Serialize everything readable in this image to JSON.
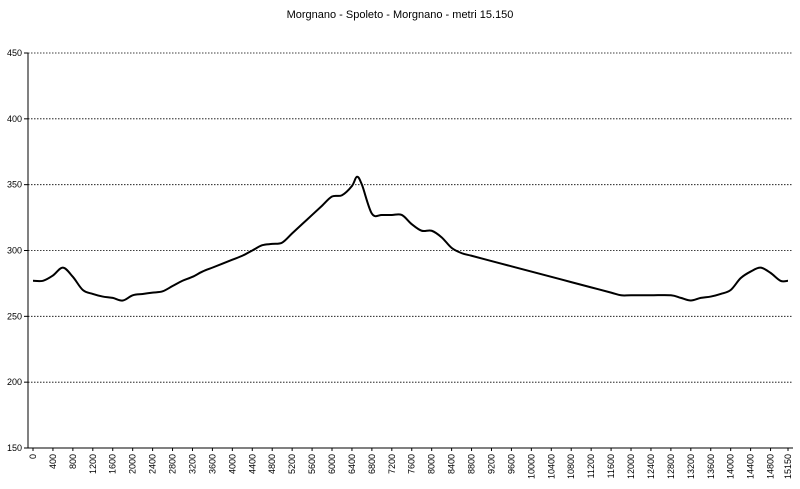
{
  "chart_data": {
    "type": "line",
    "title": "Morgnano  - Spoleto - Morgnano  - metri 15.150",
    "xlabel": "",
    "ylabel": "",
    "ylim": [
      150,
      450
    ],
    "xlim": [
      0,
      15150
    ],
    "y_ticks": [
      "150",
      "200",
      "250",
      "300",
      "350",
      "400",
      "450"
    ],
    "x_ticks": [
      "0",
      "400",
      "800",
      "1200",
      "1600",
      "2000",
      "2400",
      "2800",
      "3200",
      "3600",
      "4000",
      "4400",
      "4800",
      "5200",
      "5600",
      "6000",
      "6400",
      "6800",
      "7200",
      "7600",
      "8000",
      "8400",
      "8800",
      "9200",
      "9600",
      "10000",
      "10400",
      "10800",
      "11200",
      "11600",
      "12000",
      "12400",
      "12800",
      "13200",
      "13600",
      "14000",
      "14400",
      "14800",
      "15150"
    ],
    "grid": "horizontal dotted",
    "legend": "none",
    "line_color": "#000000",
    "series": [
      {
        "x": [
          0,
          200,
          400,
          600,
          800,
          1000,
          1200,
          1400,
          1600,
          1800,
          2000,
          2200,
          2400,
          2600,
          2800,
          3000,
          3200,
          3400,
          3600,
          3800,
          4000,
          4200,
          4400,
          4600,
          4800,
          5000,
          5200,
          5400,
          5600,
          5800,
          6000,
          6200,
          6400,
          6500,
          6600,
          6800,
          7000,
          7200,
          7400,
          7600,
          7800,
          8000,
          8200,
          8400,
          8600,
          8800,
          9200,
          9600,
          10000,
          10400,
          10800,
          11200,
          11600,
          11800,
          12000,
          12400,
          12800,
          13000,
          13200,
          13400,
          13600,
          13800,
          14000,
          14200,
          14400,
          14600,
          14800,
          15000,
          15150
        ],
        "y": [
          277,
          277,
          281,
          287,
          280,
          270,
          267,
          265,
          264,
          262,
          266,
          267,
          268,
          269,
          273,
          277,
          280,
          284,
          287,
          290,
          293,
          296,
          300,
          304,
          305,
          306,
          313,
          320,
          327,
          334,
          341,
          342,
          349,
          356,
          350,
          328,
          327,
          327,
          327,
          320,
          315,
          315,
          310,
          302,
          298,
          296,
          292,
          288,
          284,
          280,
          276,
          272,
          268,
          266,
          266,
          266,
          266,
          264,
          262,
          264,
          265,
          267,
          270,
          279,
          284,
          287,
          283,
          277,
          277
        ]
      }
    ]
  }
}
